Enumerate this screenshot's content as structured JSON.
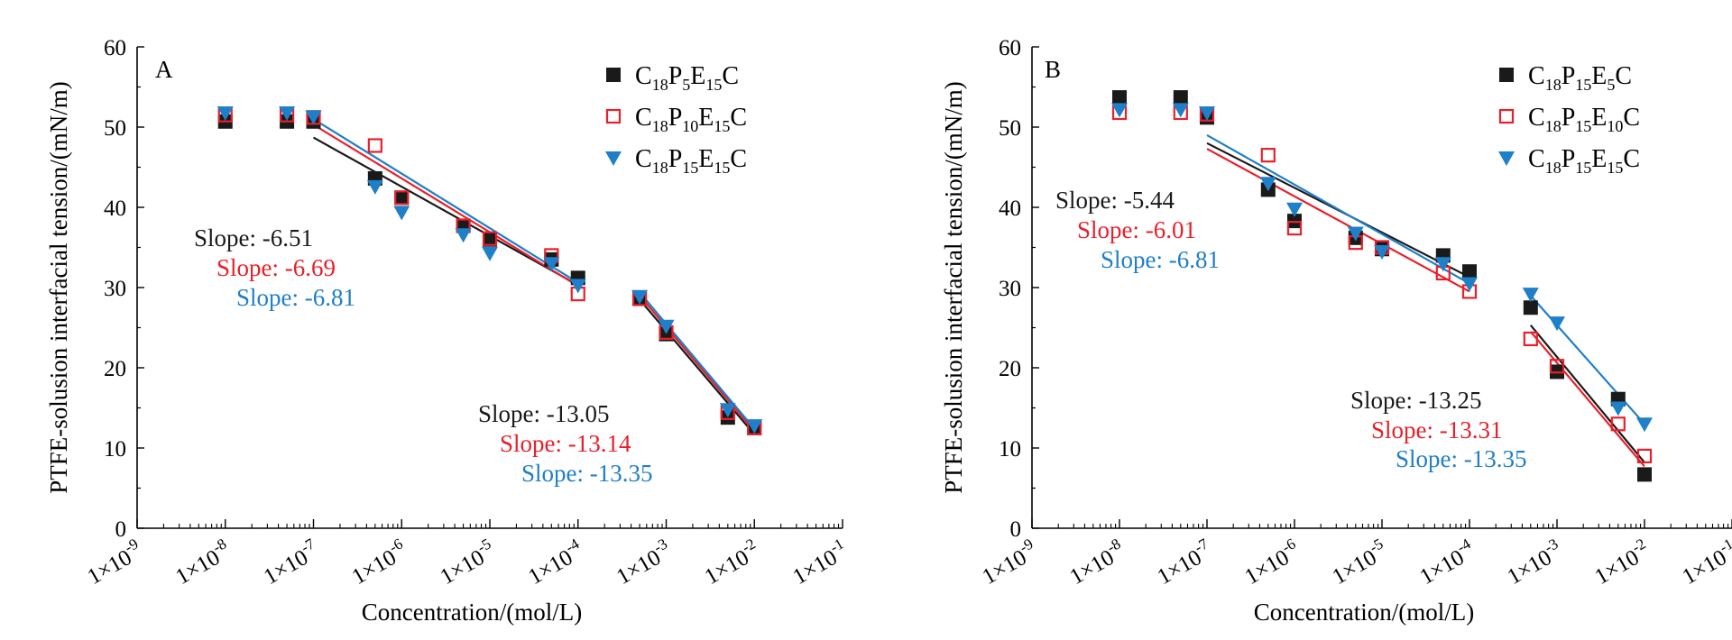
{
  "figure": {
    "xlabel": "Concentration/(mol/L)",
    "ylabel": "PTFE-solusion interfacial tension/(mN/m)",
    "x_ticks": [
      {
        "exp": -9,
        "label_base": "1×10",
        "label_exp": "-9"
      },
      {
        "exp": -8,
        "label_base": "1×10",
        "label_exp": "-8"
      },
      {
        "exp": -7,
        "label_base": "1×10",
        "label_exp": "-7"
      },
      {
        "exp": -6,
        "label_base": "1×10",
        "label_exp": "-6"
      },
      {
        "exp": -5,
        "label_base": "1×10",
        "label_exp": "-5"
      },
      {
        "exp": -4,
        "label_base": "1×10",
        "label_exp": "-4"
      },
      {
        "exp": -3,
        "label_base": "1×10",
        "label_exp": "-3"
      },
      {
        "exp": -2,
        "label_base": "1×10",
        "label_exp": "-2"
      },
      {
        "exp": -1,
        "label_base": "1×10",
        "label_exp": "-1"
      }
    ],
    "y_ticks": [
      0,
      10,
      20,
      30,
      40,
      50,
      60
    ]
  },
  "chart_data": [
    {
      "type": "scatter",
      "panel_label": "A",
      "x_scale": "log",
      "xlim": [
        1e-09,
        0.1
      ],
      "ylim": [
        0,
        60
      ],
      "legend_position": "top-right",
      "series": [
        {
          "name": "C18P5E15C",
          "name_parts": [
            [
              "C",
              ""
            ],
            [
              "18",
              "sub"
            ],
            [
              "P",
              ""
            ],
            [
              "5",
              "sub"
            ],
            [
              "E",
              ""
            ],
            [
              "15",
              "sub"
            ],
            [
              "C",
              ""
            ]
          ],
          "marker": "filled-square",
          "color": "#1a1a1a",
          "x": [
            1e-08,
            5e-08,
            1e-07,
            5e-07,
            1e-06,
            5e-06,
            1e-05,
            5e-05,
            0.0001,
            0.0005,
            0.001,
            0.005,
            0.01
          ],
          "y": [
            50.7,
            50.7,
            50.7,
            43.6,
            41.2,
            37.7,
            36.0,
            33.5,
            31.2,
            28.6,
            24.2,
            13.8,
            12.5
          ],
          "fits": [
            {
              "x": [
                1e-07,
                0.0001
              ],
              "y": [
                48.7,
                30.3
              ]
            },
            {
              "x": [
                0.0005,
                0.01
              ],
              "y": [
                28.5,
                11.7
              ]
            }
          ]
        },
        {
          "name": "C18P10E15C",
          "name_parts": [
            [
              "C",
              ""
            ],
            [
              "18",
              "sub"
            ],
            [
              "P",
              ""
            ],
            [
              "10",
              "sub"
            ],
            [
              "E",
              ""
            ],
            [
              "15",
              "sub"
            ],
            [
              "C",
              ""
            ]
          ],
          "marker": "open-square",
          "color": "#e8202a",
          "x": [
            1e-08,
            5e-08,
            1e-07,
            5e-07,
            1e-06,
            5e-06,
            1e-05,
            5e-05,
            0.0001,
            0.0005,
            0.001,
            0.005,
            0.01
          ],
          "y": [
            51.5,
            51.5,
            51.2,
            47.7,
            41.2,
            37.7,
            36.1,
            34.0,
            29.2,
            28.6,
            24.4,
            14.4,
            12.5
          ],
          "fits": [
            {
              "x": [
                1e-07,
                0.0001
              ],
              "y": [
                50.3,
                30.2
              ]
            },
            {
              "x": [
                0.0005,
                0.01
              ],
              "y": [
                29.0,
                12.1
              ]
            }
          ]
        },
        {
          "name": "C18P15E15C",
          "name_parts": [
            [
              "C",
              ""
            ],
            [
              "18",
              "sub"
            ],
            [
              "P",
              ""
            ],
            [
              "15",
              "sub"
            ],
            [
              "E",
              ""
            ],
            [
              "15",
              "sub"
            ],
            [
              "C",
              ""
            ]
          ],
          "marker": "filled-triangle-down",
          "color": "#1f7fc8",
          "x": [
            1e-08,
            5e-08,
            1e-07,
            5e-07,
            1e-06,
            5e-06,
            1e-05,
            5e-05,
            0.0001,
            0.0005,
            0.001,
            0.005,
            0.01
          ],
          "y": [
            51.8,
            51.8,
            51.3,
            42.6,
            39.4,
            36.6,
            34.3,
            33.0,
            30.3,
            28.9,
            25.2,
            14.8,
            12.8
          ],
          "fits": [
            {
              "x": [
                1e-07,
                0.0001
              ],
              "y": [
                51.0,
                30.6
              ]
            },
            {
              "x": [
                0.0005,
                0.01
              ],
              "y": [
                29.4,
                12.4
              ]
            }
          ]
        }
      ],
      "annotations": [
        {
          "group": "low",
          "lines": [
            {
              "text": "Slope: -6.51",
              "color": "#1a1a1a"
            },
            {
              "text": "Slope: -6.69",
              "color": "#e8202a"
            },
            {
              "text": "Slope: -6.81",
              "color": "#1f7fc8"
            }
          ]
        },
        {
          "group": "high",
          "lines": [
            {
              "text": "Slope: -13.05",
              "color": "#1a1a1a"
            },
            {
              "text": "Slope: -13.14",
              "color": "#e8202a"
            },
            {
              "text": "Slope: -13.35",
              "color": "#1f7fc8"
            }
          ]
        }
      ]
    },
    {
      "type": "scatter",
      "panel_label": "B",
      "x_scale": "log",
      "xlim": [
        1e-09,
        0.1
      ],
      "ylim": [
        0,
        60
      ],
      "legend_position": "top-right",
      "series": [
        {
          "name": "C18P15E5C",
          "name_parts": [
            [
              "C",
              ""
            ],
            [
              "18",
              "sub"
            ],
            [
              "P",
              ""
            ],
            [
              "15",
              "sub"
            ],
            [
              "E",
              ""
            ],
            [
              "5",
              "sub"
            ],
            [
              "C",
              ""
            ]
          ],
          "marker": "filled-square",
          "color": "#1a1a1a",
          "x": [
            1e-08,
            5e-08,
            1e-07,
            5e-07,
            1e-06,
            5e-06,
            1e-05,
            5e-05,
            0.0001,
            0.0005,
            0.001,
            0.005,
            0.01
          ],
          "y": [
            53.7,
            53.7,
            51.2,
            42.2,
            38.3,
            36.2,
            34.8,
            34.0,
            32.0,
            27.5,
            19.5,
            16.1,
            6.7
          ],
          "fits": [
            {
              "x": [
                1e-07,
                0.0001
              ],
              "y": [
                48.0,
                31.3
              ]
            },
            {
              "x": [
                0.0005,
                0.01
              ],
              "y": [
                25.3,
                8.2
              ]
            }
          ]
        },
        {
          "name": "C18P15E10C",
          "name_parts": [
            [
              "C",
              ""
            ],
            [
              "18",
              "sub"
            ],
            [
              "P",
              ""
            ],
            [
              "15",
              "sub"
            ],
            [
              "E",
              ""
            ],
            [
              "10",
              "sub"
            ],
            [
              "C",
              ""
            ]
          ],
          "marker": "open-square",
          "color": "#e8202a",
          "x": [
            1e-08,
            5e-08,
            1e-07,
            5e-07,
            1e-06,
            5e-06,
            1e-05,
            5e-05,
            0.0001,
            0.0005,
            0.001,
            0.005,
            0.01
          ],
          "y": [
            51.8,
            51.8,
            51.6,
            46.5,
            37.4,
            35.6,
            35.0,
            31.8,
            29.5,
            23.6,
            20.2,
            13.0,
            9.0
          ],
          "fits": [
            {
              "x": [
                1e-07,
                0.0001
              ],
              "y": [
                47.3,
                29.5
              ]
            },
            {
              "x": [
                0.0005,
                0.01
              ],
              "y": [
                24.5,
                7.7
              ]
            }
          ]
        },
        {
          "name": "C18P15E15C",
          "name_parts": [
            [
              "C",
              ""
            ],
            [
              "18",
              "sub"
            ],
            [
              "P",
              ""
            ],
            [
              "15",
              "sub"
            ],
            [
              "E",
              ""
            ],
            [
              "15",
              "sub"
            ],
            [
              "C",
              ""
            ]
          ],
          "marker": "filled-triangle-down",
          "color": "#1f7fc8",
          "x": [
            1e-08,
            5e-08,
            1e-07,
            5e-07,
            1e-06,
            5e-06,
            1e-05,
            5e-05,
            0.0001,
            0.0005,
            0.001,
            0.005,
            0.01
          ],
          "y": [
            52.2,
            52.2,
            51.8,
            43.0,
            39.8,
            36.8,
            34.5,
            33.0,
            30.5,
            29.2,
            25.6,
            15.0,
            13.0
          ],
          "fits": [
            {
              "x": [
                1e-07,
                0.0001
              ],
              "y": [
                49.0,
                30.5
              ]
            },
            {
              "x": [
                0.0005,
                0.01
              ],
              "y": [
                29.0,
                13.0
              ]
            }
          ]
        }
      ],
      "annotations": [
        {
          "group": "low",
          "lines": [
            {
              "text": "Slope: -5.44",
              "color": "#1a1a1a"
            },
            {
              "text": "Slope: -6.01",
              "color": "#e8202a"
            },
            {
              "text": "Slope: -6.81",
              "color": "#1f7fc8"
            }
          ]
        },
        {
          "group": "high",
          "lines": [
            {
              "text": "Slope: -13.25",
              "color": "#1a1a1a"
            },
            {
              "text": "Slope: -13.31",
              "color": "#e8202a"
            },
            {
              "text": "Slope: -13.35",
              "color": "#1f7fc8"
            }
          ]
        }
      ]
    }
  ]
}
